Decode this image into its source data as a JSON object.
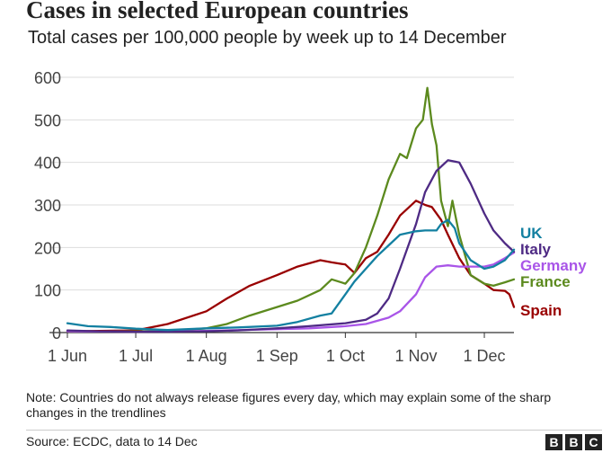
{
  "title": "Cases in selected European countries",
  "subtitle": "Total cases per 100,000 people by week up to 14 December",
  "note": "Note: Countries do not always release figures every day, which may explain some of the sharp changes in the trendlines",
  "source": "Source: ECDC, data to 14 Dec",
  "logo": {
    "letters": [
      "B",
      "B",
      "C"
    ]
  },
  "chart_data": {
    "type": "line",
    "x_unit": "date",
    "xlim": [
      "2020-06-01",
      "2020-12-14"
    ],
    "ylim": [
      0,
      600
    ],
    "yticks": [
      0,
      100,
      200,
      300,
      400,
      500,
      600
    ],
    "ytick_labels": [
      "0",
      "100",
      "200",
      "300",
      "400",
      "500",
      "600"
    ],
    "xticks": [
      "2020-06-01",
      "2020-07-01",
      "2020-08-01",
      "2020-09-01",
      "2020-10-01",
      "2020-11-01",
      "2020-12-01"
    ],
    "xtick_labels": [
      "1 Jun",
      "1 Jul",
      "1 Aug",
      "1 Sep",
      "1 Oct",
      "1 Nov",
      "1 Dec"
    ],
    "grid": "horizontal",
    "legend": "direct labels at line ends",
    "series": [
      {
        "name": "UK",
        "color": "#1380a1",
        "x": [
          "2020-06-01",
          "2020-06-10",
          "2020-06-20",
          "2020-07-01",
          "2020-07-15",
          "2020-08-01",
          "2020-08-15",
          "2020-09-01",
          "2020-09-10",
          "2020-09-20",
          "2020-09-25",
          "2020-10-01",
          "2020-10-05",
          "2020-10-10",
          "2020-10-15",
          "2020-10-20",
          "2020-10-25",
          "2020-11-01",
          "2020-11-05",
          "2020-11-10",
          "2020-11-12",
          "2020-11-15",
          "2020-11-18",
          "2020-11-20",
          "2020-11-25",
          "2020-12-01",
          "2020-12-05",
          "2020-12-10",
          "2020-12-14"
        ],
        "values": [
          22,
          15,
          13,
          9,
          6,
          10,
          12,
          16,
          25,
          40,
          45,
          90,
          120,
          150,
          180,
          205,
          230,
          238,
          240,
          240,
          255,
          265,
          245,
          210,
          170,
          150,
          155,
          170,
          195
        ]
      },
      {
        "name": "Italy",
        "color": "#4e2a84",
        "x": [
          "2020-06-01",
          "2020-06-15",
          "2020-07-01",
          "2020-07-15",
          "2020-08-01",
          "2020-08-15",
          "2020-09-01",
          "2020-09-15",
          "2020-10-01",
          "2020-10-10",
          "2020-10-15",
          "2020-10-20",
          "2020-10-25",
          "2020-11-01",
          "2020-11-05",
          "2020-11-10",
          "2020-11-15",
          "2020-11-20",
          "2020-11-25",
          "2020-12-01",
          "2020-12-05",
          "2020-12-10",
          "2020-12-14"
        ],
        "values": [
          5,
          3,
          2,
          2,
          3,
          5,
          10,
          15,
          22,
          30,
          45,
          80,
          150,
          255,
          330,
          380,
          405,
          400,
          350,
          280,
          240,
          210,
          190
        ]
      },
      {
        "name": "Germany",
        "color": "#a955e8",
        "x": [
          "2020-06-01",
          "2020-07-01",
          "2020-08-01",
          "2020-09-01",
          "2020-09-15",
          "2020-10-01",
          "2020-10-10",
          "2020-10-20",
          "2020-10-25",
          "2020-11-01",
          "2020-11-05",
          "2020-11-10",
          "2020-11-15",
          "2020-11-20",
          "2020-11-25",
          "2020-12-01",
          "2020-12-05",
          "2020-12-10",
          "2020-12-14"
        ],
        "values": [
          3,
          2,
          4,
          8,
          10,
          15,
          20,
          35,
          50,
          90,
          130,
          155,
          158,
          155,
          155,
          155,
          160,
          175,
          188
        ]
      },
      {
        "name": "France",
        "color": "#5c8a1e",
        "x": [
          "2020-06-01",
          "2020-07-01",
          "2020-07-15",
          "2020-08-01",
          "2020-08-10",
          "2020-08-20",
          "2020-09-01",
          "2020-09-10",
          "2020-09-20",
          "2020-09-25",
          "2020-10-01",
          "2020-10-05",
          "2020-10-10",
          "2020-10-15",
          "2020-10-20",
          "2020-10-25",
          "2020-10-28",
          "2020-11-01",
          "2020-11-04",
          "2020-11-06",
          "2020-11-08",
          "2020-11-10",
          "2020-11-12",
          "2020-11-15",
          "2020-11-17",
          "2020-11-20",
          "2020-11-25",
          "2020-12-01",
          "2020-12-05",
          "2020-12-10",
          "2020-12-14"
        ],
        "values": [
          3,
          3,
          4,
          10,
          20,
          40,
          60,
          75,
          100,
          125,
          115,
          140,
          200,
          275,
          360,
          420,
          410,
          480,
          500,
          575,
          490,
          440,
          310,
          250,
          310,
          230,
          135,
          115,
          110,
          118,
          125
        ]
      },
      {
        "name": "Spain",
        "color": "#990000",
        "x": [
          "2020-06-01",
          "2020-06-15",
          "2020-07-01",
          "2020-07-15",
          "2020-08-01",
          "2020-08-10",
          "2020-08-20",
          "2020-09-01",
          "2020-09-10",
          "2020-09-20",
          "2020-09-25",
          "2020-10-01",
          "2020-10-05",
          "2020-10-10",
          "2020-10-15",
          "2020-10-20",
          "2020-10-25",
          "2020-11-01",
          "2020-11-05",
          "2020-11-08",
          "2020-11-12",
          "2020-11-15",
          "2020-11-20",
          "2020-11-25",
          "2020-12-01",
          "2020-12-05",
          "2020-12-10",
          "2020-12-12",
          "2020-12-14"
        ],
        "values": [
          3,
          4,
          5,
          20,
          50,
          80,
          110,
          135,
          155,
          170,
          165,
          160,
          140,
          175,
          190,
          230,
          275,
          310,
          300,
          295,
          265,
          230,
          175,
          135,
          115,
          100,
          98,
          90,
          60
        ]
      }
    ]
  }
}
